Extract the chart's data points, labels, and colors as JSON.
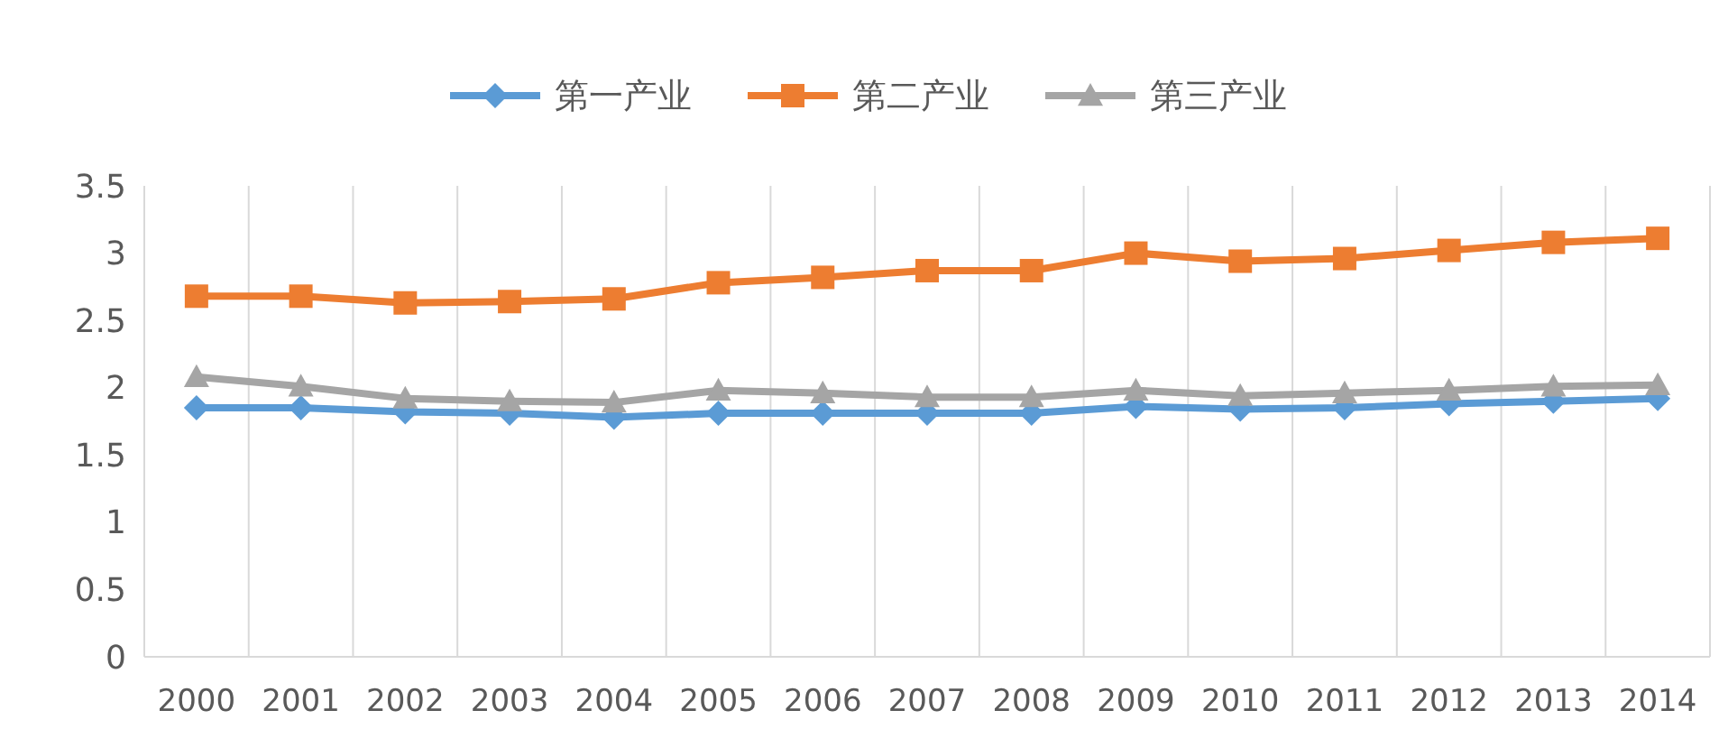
{
  "chart_data": {
    "type": "line",
    "categories": [
      "2000",
      "2001",
      "2002",
      "2003",
      "2004",
      "2005",
      "2006",
      "2007",
      "2008",
      "2009",
      "2010",
      "2011",
      "2012",
      "2013",
      "2014"
    ],
    "series": [
      {
        "name": "第一产业",
        "color": "#5b9bd5",
        "marker": "diamond",
        "values": [
          1.85,
          1.85,
          1.82,
          1.81,
          1.78,
          1.81,
          1.81,
          1.81,
          1.81,
          1.86,
          1.84,
          1.85,
          1.88,
          1.9,
          1.92
        ]
      },
      {
        "name": "第二产业",
        "color": "#ed7d31",
        "marker": "square",
        "values": [
          2.68,
          2.68,
          2.63,
          2.64,
          2.66,
          2.78,
          2.82,
          2.87,
          2.87,
          3.0,
          2.94,
          2.96,
          3.02,
          3.08,
          3.11
        ]
      },
      {
        "name": "第三产业",
        "color": "#a5a5a5",
        "marker": "triangle",
        "values": [
          2.08,
          2.01,
          1.92,
          1.9,
          1.89,
          1.98,
          1.96,
          1.93,
          1.93,
          1.98,
          1.94,
          1.96,
          1.98,
          2.01,
          2.02
        ]
      }
    ],
    "ylim": [
      0,
      3.5
    ],
    "yticks": [
      0,
      0.5,
      1,
      1.5,
      2,
      2.5,
      3,
      3.5
    ],
    "grid": "x",
    "legend": "top",
    "line_style": "solid"
  }
}
